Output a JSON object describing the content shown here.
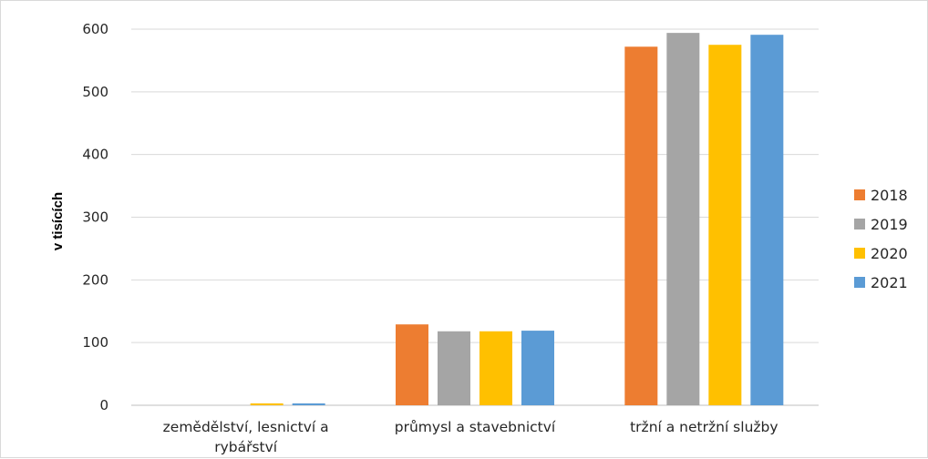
{
  "chart_data": {
    "type": "bar",
    "title": "",
    "xlabel": "",
    "ylabel": "v tisících",
    "ylim": [
      0,
      600
    ],
    "yticks": [
      0,
      100,
      200,
      300,
      400,
      500,
      600
    ],
    "grid": true,
    "legend_position": "right",
    "categories": [
      [
        "zemědělství, lesnictví a",
        "rybářství"
      ],
      [
        "průmysl a stavebnictví"
      ],
      [
        "tržní a netržní služby"
      ]
    ],
    "series": [
      {
        "name": "2018",
        "color": "#ed7d31",
        "values": [
          0,
          129,
          572
        ]
      },
      {
        "name": "2019",
        "color": "#a5a5a5",
        "values": [
          0,
          118,
          594
        ]
      },
      {
        "name": "2020",
        "color": "#ffc000",
        "values": [
          3,
          118,
          575
        ]
      },
      {
        "name": "2021",
        "color": "#5b9bd5",
        "values": [
          3,
          119,
          591
        ]
      }
    ]
  }
}
